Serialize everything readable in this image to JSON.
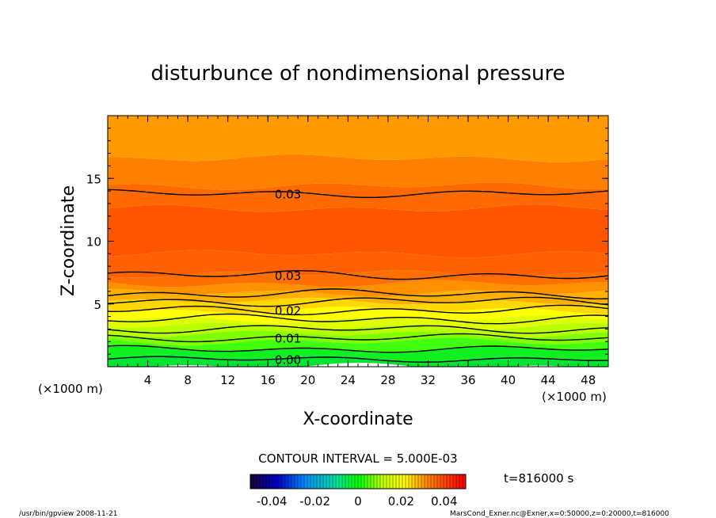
{
  "chart_data": {
    "type": "contour",
    "title": "disturbunce of nondimensional pressure",
    "xlabel": "X-coordinate",
    "ylabel": "Z-coordinate",
    "x_unit": "(×1000 m)",
    "y_unit": "(×1000 m)",
    "xlim": [
      0,
      50
    ],
    "ylim": [
      0,
      20
    ],
    "xticks": [
      "4",
      "8",
      "12",
      "16",
      "20",
      "24",
      "28",
      "32",
      "36",
      "40",
      "44",
      "48"
    ],
    "yticks": [
      "5",
      "10",
      "15"
    ],
    "contour_interval_text": "CONTOUR INTERVAL = 5.000E-03",
    "contour_labels": [
      "0.00",
      "0.01",
      "0.02",
      "0.03",
      "0.03"
    ],
    "contour_lines": [
      {
        "z_mean": 0.6,
        "amplitude": 0.15
      },
      {
        "z_mean": 1.4,
        "amplitude": 0.18
      },
      {
        "z_mean": 2.3,
        "amplitude": 0.2
      },
      {
        "z_mean": 3.0,
        "amplitude": 0.22
      },
      {
        "z_mean": 3.8,
        "amplitude": 0.25
      },
      {
        "z_mean": 4.5,
        "amplitude": 0.25
      },
      {
        "z_mean": 5.2,
        "amplitude": 0.25
      },
      {
        "z_mean": 5.8,
        "amplitude": 0.25
      },
      {
        "z_mean": 7.3,
        "amplitude": 0.25
      },
      {
        "z_mean": 13.8,
        "amplitude": 0.2
      }
    ],
    "colorbar": {
      "ticks": [
        "-0.04",
        "-0.02",
        "0",
        "0.02",
        "0.04"
      ],
      "range": [
        -0.05,
        0.05
      ]
    },
    "time_label": "t=816000 s"
  },
  "footer": {
    "left": "/usr/bin/gpview   2008-11-21",
    "right": "MarsCond_Exner.nc@Exner,x=0:50000,z=0:20000,t=816000"
  },
  "colors": {
    "top_orange": "#ff9a00",
    "mid_red_orange": "#ff5500",
    "yellow": "#ffff00",
    "green": "#00ff00"
  }
}
